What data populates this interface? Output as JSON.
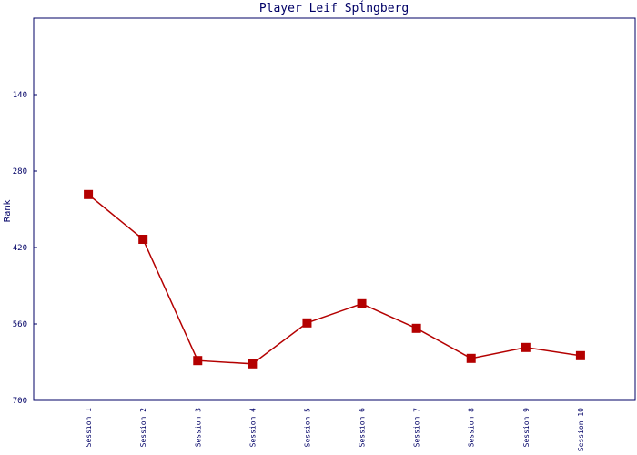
{
  "chart_data": {
    "type": "line",
    "title": "Player Leif Spĺngberg",
    "y_label": "Rank",
    "categories": [
      "Session 1",
      "Session 2",
      "Session 3",
      "Session 4",
      "Session 5",
      "Session 6",
      "Session 7",
      "Session 8",
      "Session 9",
      "Session 10"
    ],
    "series": [
      {
        "name": "Rank",
        "color": "#b40000",
        "values": [
          323,
          405,
          627,
          633,
          558,
          523,
          568,
          623,
          603,
          618
        ]
      }
    ],
    "ylim": [
      0,
      700
    ],
    "y_inverted": true,
    "yticks": [
      140,
      280,
      420,
      560,
      700
    ],
    "grid": false
  }
}
